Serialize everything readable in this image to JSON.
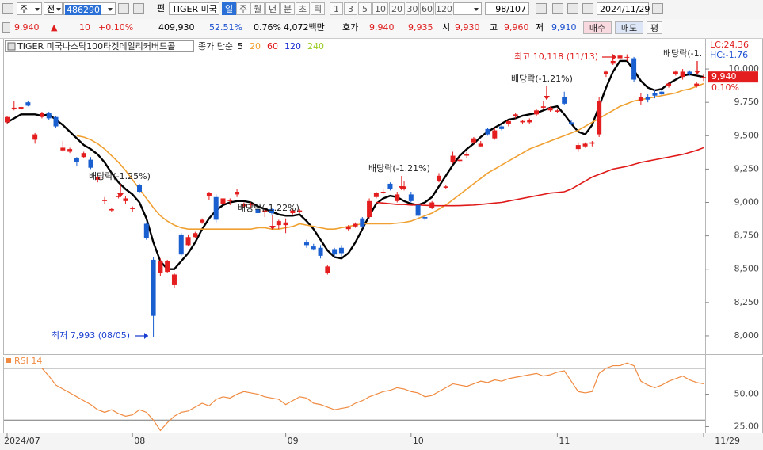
{
  "toolbar": {
    "market": "주",
    "mode": "전",
    "code": "486290",
    "edit": "편",
    "name": "TIGER 미국",
    "periods": [
      "일",
      "주",
      "월",
      "년",
      "분",
      "초",
      "틱"
    ],
    "intervals": [
      "1",
      "3",
      "5",
      "10",
      "20",
      "30",
      "60",
      "120"
    ],
    "count": "98/107",
    "date": "2024/11/29"
  },
  "quote": {
    "price": "9,940",
    "arrow": "▲",
    "change": "10",
    "change_pct": "+0.10%",
    "volume": "409,930",
    "volume_ratio": "52.51%",
    "turnover": "0.76%",
    "amount": "4,072백만",
    "ask_label": "호가",
    "ask": "9,940",
    "bid": "9,935",
    "open_label": "시",
    "open": "9,930",
    "high_label": "고",
    "high": "9,960",
    "low_label": "저",
    "low": "9,910",
    "buy": "매수",
    "sell": "매도",
    "avg": "평"
  },
  "chart_data": [
    {
      "type": "candlestick",
      "title": "TIGER 미국나스닥100타겟데일리커버드콜",
      "legend_prefix": "종가 단순",
      "categories": [
        "2024/07",
        null,
        null,
        null,
        null,
        null,
        null,
        null,
        null,
        null,
        null,
        null,
        null,
        null,
        null,
        null,
        null,
        null,
        "08",
        null,
        null,
        null,
        null,
        null,
        null,
        null,
        null,
        null,
        null,
        null,
        null,
        null,
        null,
        null,
        null,
        null,
        null,
        null,
        null,
        null,
        "09",
        null,
        null,
        null,
        null,
        null,
        null,
        null,
        null,
        null,
        null,
        null,
        null,
        null,
        null,
        null,
        null,
        null,
        "10",
        null,
        null,
        null,
        null,
        null,
        null,
        null,
        null,
        null,
        null,
        null,
        null,
        null,
        null,
        null,
        null,
        null,
        null,
        null,
        null,
        "11",
        null,
        null,
        null,
        null,
        null,
        null,
        null,
        null,
        null,
        null,
        null,
        null,
        null,
        null,
        null,
        null,
        null,
        null,
        null,
        null,
        "11/29"
      ],
      "open": [
        9600,
        9700,
        9700,
        9750,
        9470,
        9640,
        9670,
        9640,
        9390,
        9380,
        9330,
        9340,
        9320,
        9170,
        9010,
        8940,
        9040,
        9010,
        8950,
        9130,
        8840,
        8570,
        8470,
        8480,
        8380,
        8760,
        8680,
        8740,
        8850,
        9050,
        9040,
        8990,
        9010,
        9060,
        8970,
        8980,
        8950,
        8930,
        8950,
        8830,
        8830,
        8920,
        8930,
        8700,
        8670,
        8660,
        8470,
        8650,
        8660,
        8800,
        8820,
        8880,
        8890,
        9040,
        9070,
        9140,
        9010,
        9100,
        9060,
        8980,
        8890,
        8960,
        9160,
        9110,
        9300,
        9310,
        9350,
        9450,
        9420,
        9550,
        9480,
        9570,
        9590,
        9650,
        9600,
        9600,
        9660,
        9710,
        9690,
        9680,
        9790,
        9600,
        9400,
        9420,
        9440,
        9510,
        9960,
        10040,
        10080,
        10090,
        10080,
        9760,
        9790,
        9820,
        9830,
        9870,
        9960,
        9940,
        9980,
        9870,
        9930
      ],
      "high": [
        9650,
        9760,
        9720,
        9760,
        9520,
        9680,
        9680,
        9650,
        9460,
        9410,
        9340,
        9380,
        9340,
        9200,
        9040,
        8960,
        9060,
        9050,
        8970,
        9140,
        8850,
        8590,
        8580,
        8570,
        8470,
        8770,
        8760,
        8780,
        8880,
        9080,
        9060,
        9050,
        9030,
        9100,
        9000,
        9000,
        8970,
        8950,
        8960,
        8870,
        8880,
        8950,
        8950,
        8720,
        8690,
        8680,
        8530,
        8660,
        8680,
        8830,
        8850,
        8890,
        9030,
        9080,
        9100,
        9150,
        9080,
        9160,
        9080,
        9000,
        8910,
        9010,
        9220,
        9130,
        9380,
        9330,
        9380,
        9490,
        9460,
        9560,
        9560,
        9580,
        9620,
        9670,
        9620,
        9630,
        9700,
        9760,
        9720,
        9700,
        9830,
        9620,
        9450,
        9450,
        9460,
        9790,
        9990,
        10070,
        10118,
        10110,
        10090,
        9820,
        9810,
        9840,
        9840,
        9900,
        9990,
        10000,
        9990,
        9900,
        9960
      ],
      "low": [
        9590,
        9690,
        9690,
        9720,
        9440,
        9630,
        9620,
        9560,
        9380,
        9370,
        9270,
        9330,
        9250,
        9150,
        8990,
        8930,
        9030,
        8990,
        8930,
        9070,
        8720,
        7993,
        8450,
        8470,
        8360,
        8600,
        8670,
        8730,
        8840,
        9020,
        8850,
        8970,
        8980,
        9040,
        8960,
        8960,
        8910,
        8890,
        8910,
        8800,
        8770,
        8910,
        8920,
        8660,
        8640,
        8580,
        8460,
        8590,
        8590,
        8790,
        8810,
        8810,
        8880,
        9030,
        9060,
        9090,
        9000,
        9090,
        9000,
        8880,
        8860,
        8950,
        9150,
        9100,
        9290,
        9300,
        9330,
        9440,
        9420,
        9500,
        9470,
        9540,
        9570,
        9630,
        9590,
        9590,
        9650,
        9700,
        9680,
        9670,
        9730,
        9580,
        9380,
        9410,
        9420,
        9490,
        9940,
        10030,
        10060,
        10060,
        9900,
        9730,
        9750,
        9780,
        9800,
        9860,
        9950,
        9920,
        9950,
        9860,
        9910
      ],
      "close": [
        9640,
        9710,
        9715,
        9725,
        9510,
        9670,
        9630,
        9570,
        9410,
        9400,
        9300,
        9370,
        9260,
        9190,
        9020,
        8950,
        9050,
        9030,
        8960,
        9080,
        8730,
        8150,
        8560,
        8560,
        8460,
        8610,
        8740,
        8770,
        8870,
        9070,
        8870,
        9030,
        9020,
        9080,
        8990,
        8990,
        8920,
        8940,
        8920,
        8860,
        8850,
        8940,
        8940,
        8680,
        8650,
        8600,
        8520,
        8610,
        8620,
        8820,
        8840,
        8820,
        9010,
        9070,
        9080,
        9100,
        9060,
        9120,
        9010,
        8900,
        8880,
        9000,
        9200,
        9120,
        9350,
        9320,
        9360,
        9480,
        9440,
        9510,
        9540,
        9550,
        9610,
        9660,
        9610,
        9620,
        9690,
        9720,
        9710,
        9690,
        9740,
        9590,
        9430,
        9440,
        9450,
        9760,
        9980,
        10060,
        10100,
        10090,
        9920,
        9790,
        9770,
        9800,
        9810,
        9890,
        9980,
        9980,
        9960,
        9890,
        9940
      ],
      "up_color": "#e41e1e",
      "down_color": "#1a5fd0",
      "series": [
        {
          "name": "5",
          "color": "#000000",
          "values": [
            9600,
            9630,
            9660,
            9660,
            9660,
            9650,
            9660,
            9620,
            9580,
            9530,
            9480,
            9430,
            9400,
            9360,
            9300,
            9220,
            9150,
            9100,
            9060,
            9000,
            8880,
            8700,
            8560,
            8500,
            8500,
            8560,
            8620,
            8700,
            8800,
            8880,
            8940,
            8980,
            9000,
            9010,
            9010,
            9000,
            8970,
            8950,
            8930,
            8910,
            8900,
            8900,
            8910,
            8860,
            8800,
            8720,
            8640,
            8590,
            8580,
            8620,
            8700,
            8800,
            8900,
            8990,
            9030,
            9050,
            9040,
            9010,
            8990,
            8980,
            9000,
            9040,
            9120,
            9200,
            9280,
            9350,
            9400,
            9440,
            9490,
            9530,
            9560,
            9590,
            9620,
            9630,
            9650,
            9660,
            9670,
            9690,
            9710,
            9720,
            9660,
            9590,
            9530,
            9510,
            9580,
            9720,
            9860,
            9980,
            10060,
            10060,
            9990,
            9910,
            9860,
            9840,
            9850,
            9890,
            9920,
            9950,
            9960,
            9950,
            9940
          ]
        },
        {
          "name": "20",
          "color": "#f0a030",
          "values": [
            null,
            null,
            null,
            null,
            null,
            null,
            null,
            null,
            null,
            null,
            9500,
            9490,
            9470,
            9440,
            9400,
            9350,
            9300,
            9240,
            9170,
            9100,
            9030,
            8960,
            8900,
            8860,
            8830,
            8810,
            8800,
            8800,
            8800,
            8800,
            8800,
            8800,
            8800,
            8800,
            8800,
            8800,
            8810,
            8810,
            8800,
            8800,
            8810,
            8820,
            8840,
            8830,
            8820,
            8810,
            8800,
            8800,
            8810,
            8820,
            8830,
            8840,
            8840,
            8840,
            8840,
            8840,
            8845,
            8850,
            8860,
            8880,
            8900,
            8920,
            8950,
            8980,
            9020,
            9060,
            9100,
            9140,
            9180,
            9220,
            9250,
            9280,
            9310,
            9340,
            9370,
            9400,
            9420,
            9440,
            9460,
            9480,
            9500,
            9520,
            9540,
            9570,
            9600,
            9630,
            9660,
            9690,
            9720,
            9740,
            9760,
            9770,
            9780,
            9790,
            9800,
            9810,
            9820,
            9840,
            9850,
            9870,
            9890
          ]
        },
        {
          "name": "60",
          "color": "#e01818",
          "values": [
            null,
            null,
            null,
            null,
            null,
            null,
            null,
            null,
            null,
            null,
            null,
            null,
            null,
            null,
            null,
            null,
            null,
            null,
            null,
            null,
            null,
            null,
            null,
            null,
            null,
            null,
            null,
            null,
            null,
            null,
            null,
            null,
            null,
            null,
            null,
            null,
            null,
            null,
            null,
            null,
            null,
            null,
            null,
            null,
            null,
            null,
            null,
            null,
            null,
            null,
            null,
            null,
            null,
            9000,
            8995,
            8990,
            8985,
            8985,
            8980,
            8980,
            8978,
            8976,
            8975,
            8975,
            8975,
            8976,
            8978,
            8980,
            8985,
            8990,
            8995,
            9000,
            9010,
            9020,
            9030,
            9040,
            9050,
            9060,
            9070,
            9075,
            9080,
            9100,
            9130,
            9160,
            9190,
            9210,
            9230,
            9250,
            9260,
            9270,
            9285,
            9300,
            9310,
            9320,
            9330,
            9340,
            9350,
            9360,
            9375,
            9390,
            9410
          ]
        },
        {
          "name": "120",
          "color": "#1a2fd0"
        },
        {
          "name": "240",
          "color": "#99cc22"
        }
      ],
      "ylim": [
        7875,
        10220
      ],
      "yticks": [
        {
          "value": 8000,
          "label": "8,000"
        },
        {
          "value": 8250,
          "label": "8,250"
        },
        {
          "value": 8500,
          "label": "8,500"
        },
        {
          "value": 8750,
          "label": "8,750"
        },
        {
          "value": 9000,
          "label": "9,000"
        },
        {
          "value": 9250,
          "label": "9,250"
        },
        {
          "value": 9500,
          "label": "9,500"
        },
        {
          "value": 9750,
          "label": "9,750"
        },
        {
          "value": 10000,
          "label": "10,000"
        }
      ],
      "last_price": 9940,
      "last_price_label": "9,940",
      "last_change_label": "0.10%",
      "corner_labels": [
        "LC:24.36",
        "HC:-1.76"
      ],
      "annotations": [
        "최고 10,118 (11/13)",
        "최저 7,993 (08/05)",
        "배당락(-1.25%)",
        "배당락(-1.22%)",
        "배당락(-1.21%)",
        "배당락(-1.21%)",
        "배당락(-1."
      ]
    },
    {
      "type": "line",
      "title": "RSI 14",
      "color": "#f08a40",
      "values": [
        null,
        null,
        null,
        null,
        null,
        70,
        64,
        57,
        54,
        51,
        48,
        45,
        42,
        38,
        36,
        38,
        35,
        33,
        34,
        38,
        36,
        30,
        22,
        28,
        33,
        36,
        37,
        40,
        43,
        41,
        46,
        48,
        47,
        50,
        52,
        51,
        50,
        48,
        47,
        46,
        42,
        45,
        48,
        47,
        43,
        42,
        40,
        38,
        39,
        40,
        43,
        45,
        48,
        50,
        52,
        53,
        55,
        54,
        52,
        51,
        48,
        49,
        52,
        55,
        58,
        57,
        56,
        58,
        60,
        59,
        61,
        60,
        62,
        63,
        64,
        65,
        66,
        64,
        65,
        67,
        68,
        60,
        52,
        51,
        52,
        66,
        70,
        72,
        72,
        74,
        72,
        60,
        57,
        55,
        57,
        60,
        62,
        64,
        61,
        59,
        58
      ],
      "ylim": [
        21,
        76
      ],
      "yticks": [
        {
          "value": 25,
          "label": "25.00"
        },
        {
          "value": 50,
          "label": "50.00"
        }
      ],
      "hlines": [
        30,
        70
      ]
    }
  ]
}
